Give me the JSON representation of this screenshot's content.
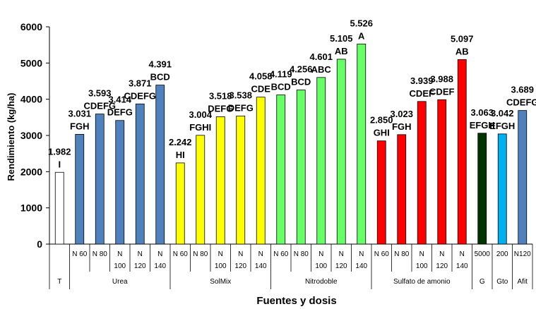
{
  "chart_data": {
    "type": "bar",
    "title": "",
    "xlabel": "Fuentes y dosis",
    "ylabel": "Rendimiento (kg/ha)",
    "ylim": [
      0,
      6000
    ],
    "yticks": [
      0,
      1000,
      2000,
      3000,
      4000,
      5000,
      6000
    ],
    "grid": false,
    "legend": "none",
    "bars": [
      {
        "group": "T",
        "category": "",
        "value": 1982,
        "value_label": "1.982",
        "letters": "I",
        "color": "#ffffff"
      },
      {
        "group": "Urea",
        "category": "N 60",
        "value": 3031,
        "value_label": "3.031",
        "letters": "FGH",
        "color": "#4f81bd"
      },
      {
        "group": "Urea",
        "category": "N 80",
        "value": 3593,
        "value_label": "3.593",
        "letters": "CDEFG",
        "color": "#4f81bd"
      },
      {
        "group": "Urea",
        "category": "N 100",
        "value": 3414,
        "value_label": "3.414",
        "letters": "DEFG",
        "color": "#4f81bd"
      },
      {
        "group": "Urea",
        "category": "N 120",
        "value": 3871,
        "value_label": "3.871",
        "letters": "CDEFG",
        "color": "#4f81bd"
      },
      {
        "group": "Urea",
        "category": "N 140",
        "value": 4391,
        "value_label": "4.391",
        "letters": "BCD",
        "color": "#4f81bd"
      },
      {
        "group": "SolMix",
        "category": "N 60",
        "value": 2242,
        "value_label": "2.242",
        "letters": "HI",
        "color": "#ffff00"
      },
      {
        "group": "SolMix",
        "category": "N 80",
        "value": 3004,
        "value_label": "3.004",
        "letters": "FGHI",
        "color": "#ffff00"
      },
      {
        "group": "SolMix",
        "category": "N 100",
        "value": 3518,
        "value_label": "3.518",
        "letters": "DEFG",
        "color": "#ffff00"
      },
      {
        "group": "SolMix",
        "category": "N 120",
        "value": 3538,
        "value_label": "3.538",
        "letters": "DEFG",
        "color": "#ffff00"
      },
      {
        "group": "SolMix",
        "category": "N 140",
        "value": 4058,
        "value_label": "4.058",
        "letters": "CDE",
        "color": "#ffff00"
      },
      {
        "group": "Nitrodoble",
        "category": "N 60",
        "value": 4119,
        "value_label": "4.119",
        "letters": "BCD",
        "color": "#66ff66"
      },
      {
        "group": "Nitrodoble",
        "category": "N 80",
        "value": 4256,
        "value_label": "4.256",
        "letters": "BCD",
        "color": "#66ff66"
      },
      {
        "group": "Nitrodoble",
        "category": "N 100",
        "value": 4601,
        "value_label": "4.601",
        "letters": "ABC",
        "color": "#66ff66"
      },
      {
        "group": "Nitrodoble",
        "category": "N 120",
        "value": 5105,
        "value_label": "5.105",
        "letters": "AB",
        "color": "#66ff66"
      },
      {
        "group": "Nitrodoble",
        "category": "N 140",
        "value": 5526,
        "value_label": "5.526",
        "letters": "A",
        "color": "#66ff66"
      },
      {
        "group": "Sulfato de amonio",
        "category": "N 60",
        "value": 2850,
        "value_label": "2.850",
        "letters": "GHI",
        "color": "#ff0000"
      },
      {
        "group": "Sulfato de amonio",
        "category": "N 80",
        "value": 3023,
        "value_label": "3.023",
        "letters": "FGH",
        "color": "#ff0000"
      },
      {
        "group": "Sulfato de amonio",
        "category": "N 100",
        "value": 3939,
        "value_label": "3.939",
        "letters": "CDEF",
        "color": "#ff0000"
      },
      {
        "group": "Sulfato de amonio",
        "category": "N 120",
        "value": 3988,
        "value_label": "3.988",
        "letters": "CDEF",
        "color": "#ff0000"
      },
      {
        "group": "Sulfato de amonio",
        "category": "N 140",
        "value": 5097,
        "value_label": "5.097",
        "letters": "AB",
        "color": "#ff0000"
      },
      {
        "group": "G",
        "category": "5000",
        "value": 3063,
        "value_label": "3.063",
        "letters": "EFGH",
        "color": "#003300"
      },
      {
        "group": "Gto",
        "category": "200",
        "value": 3042,
        "value_label": "3.042",
        "letters": "EFGH",
        "color": "#00b0f0"
      },
      {
        "group": "Afit",
        "category": "N120",
        "value": 3689,
        "value_label": "3.689",
        "letters": "CDEFG",
        "color": "#4f81bd"
      }
    ],
    "groups": [
      "T",
      "Urea",
      "SolMix",
      "Nitrodoble",
      "Sulfato de amonio",
      "G",
      "Gto",
      "Afit"
    ]
  }
}
